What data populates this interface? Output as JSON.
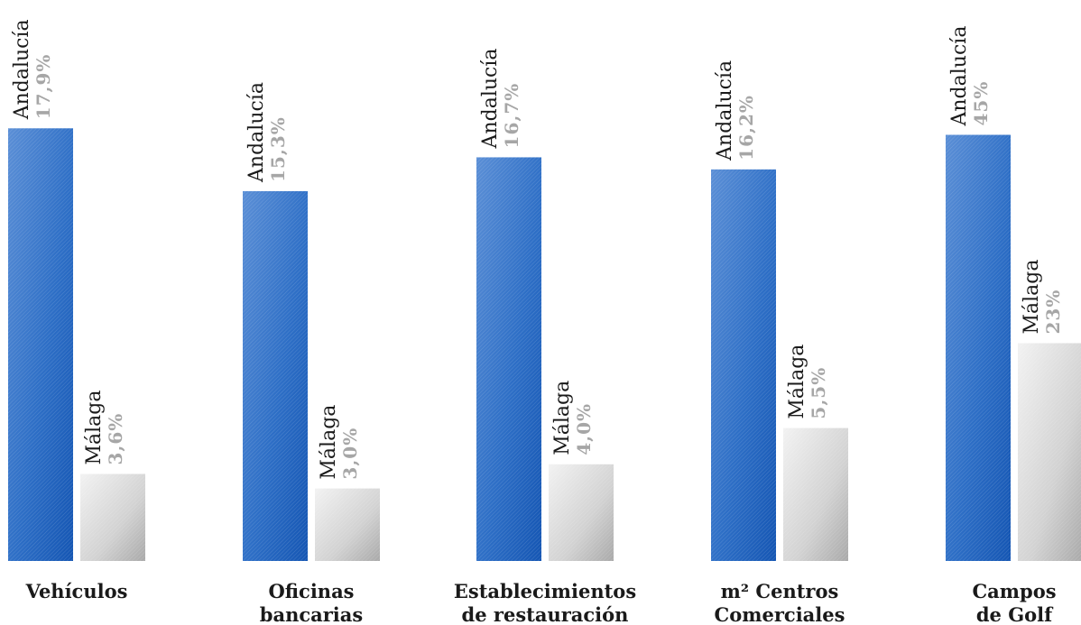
{
  "chart_data": {
    "type": "bar",
    "groups": [
      {
        "category": [
          "Vehículos"
        ],
        "bars": [
          {
            "series": "Andalucía",
            "label": "17,9%",
            "value": 17.9
          },
          {
            "series": "Málaga",
            "label": "3,6%",
            "value": 3.6
          }
        ]
      },
      {
        "category": [
          "Oficinas",
          "bancarias"
        ],
        "bars": [
          {
            "series": "Andalucía",
            "label": "15,3%",
            "value": 15.3
          },
          {
            "series": "Málaga",
            "label": "3,0%",
            "value": 3.0
          }
        ]
      },
      {
        "category": [
          "Establecimientos",
          "de restauración"
        ],
        "bars": [
          {
            "series": "Andalucía",
            "label": "16,7%",
            "value": 16.7
          },
          {
            "series": "Málaga",
            "label": "4,0%",
            "value": 4.0
          }
        ]
      },
      {
        "category": [
          "m² Centros",
          "Comerciales"
        ],
        "bars": [
          {
            "series": "Andalucía",
            "label": "16,2%",
            "value": 16.2
          },
          {
            "series": "Málaga",
            "label": "5,5%",
            "value": 5.5
          }
        ]
      },
      {
        "category": [
          "Campos",
          "de Golf"
        ],
        "bars": [
          {
            "series": "Andalucía",
            "label": "45%",
            "value": 45
          },
          {
            "series": "Málaga",
            "label": "23%",
            "value": 23
          }
        ],
        "note": "bar heights in this group are drawn on a different scale"
      }
    ],
    "colors": {
      "Andalucía": "#2f6fc4",
      "Málaga": "#d0d0d0"
    }
  }
}
